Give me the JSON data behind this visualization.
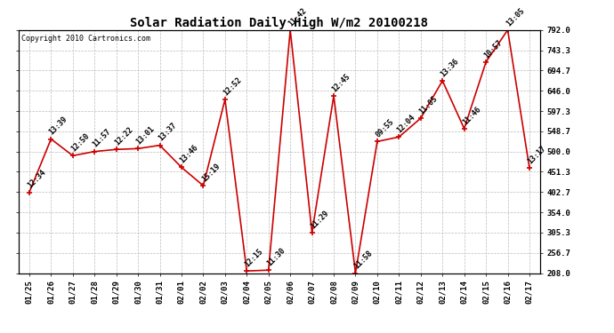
{
  "title": "Solar Radiation Daily High W/m2 20100218",
  "copyright": "Copyright 2010 Cartronics.com",
  "dates": [
    "01/25",
    "01/26",
    "01/27",
    "01/28",
    "01/29",
    "01/30",
    "01/31",
    "02/01",
    "02/02",
    "02/03",
    "02/04",
    "02/05",
    "02/06",
    "02/07",
    "02/08",
    "02/09",
    "02/10",
    "02/11",
    "02/12",
    "02/13",
    "02/14",
    "02/15",
    "02/16",
    "02/17"
  ],
  "values": [
    402,
    530,
    490,
    500,
    505,
    507,
    515,
    462,
    418,
    625,
    213,
    215,
    792,
    305,
    634,
    208,
    524,
    535,
    580,
    670,
    555,
    715,
    792,
    460
  ],
  "time_labels": [
    "12:34",
    "13:39",
    "12:50",
    "11:57",
    "12:22",
    "13:01",
    "13:37",
    "13:46",
    "15:19",
    "12:52",
    "12:15",
    "11:30",
    "11:42",
    "11:29",
    "12:45",
    "11:58",
    "09:55",
    "12:04",
    "11:05",
    "13:36",
    "11:46",
    "10:57",
    "13:05",
    "13:17"
  ],
  "y_min": 208.0,
  "y_max": 792.0,
  "y_ticks": [
    208.0,
    256.7,
    305.3,
    354.0,
    402.7,
    451.3,
    500.0,
    548.7,
    597.3,
    646.0,
    694.7,
    743.3,
    792.0
  ],
  "line_color": "#cc0000",
  "marker_color": "#cc0000",
  "bg_color": "#ffffff",
  "grid_color": "#bbbbbb",
  "title_fontsize": 10,
  "annotation_fontsize": 6,
  "tick_fontsize": 6.5,
  "copyright_fontsize": 6
}
